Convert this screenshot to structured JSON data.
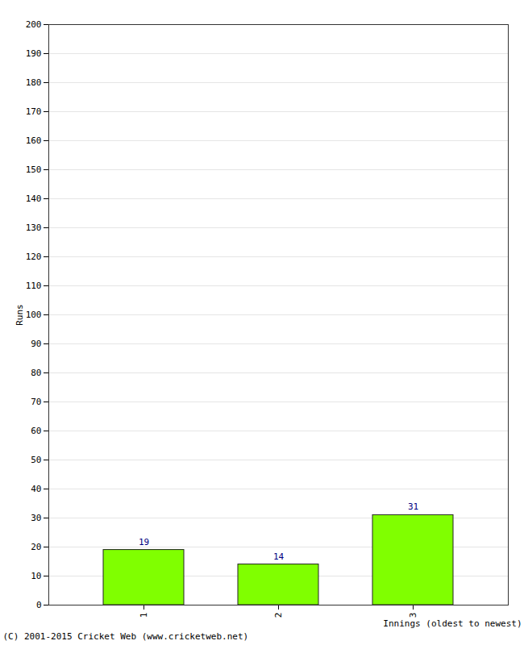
{
  "chart_data": {
    "type": "bar",
    "categories": [
      "1",
      "2",
      "3"
    ],
    "values": [
      19,
      14,
      31
    ],
    "color": "#80ff00",
    "x_label": "Innings (oldest to newest)",
    "y_label": "Runs",
    "caption": "(C) 2001-2015 Cricket Web (www.cricketweb.net)",
    "ylim": [
      0,
      200
    ],
    "yticks": [
      0,
      10,
      20,
      30,
      40,
      50,
      60,
      70,
      80,
      90,
      100,
      110,
      120,
      130,
      140,
      150,
      160,
      170,
      180,
      190,
      200
    ],
    "grid": true,
    "data_labels": true
  }
}
